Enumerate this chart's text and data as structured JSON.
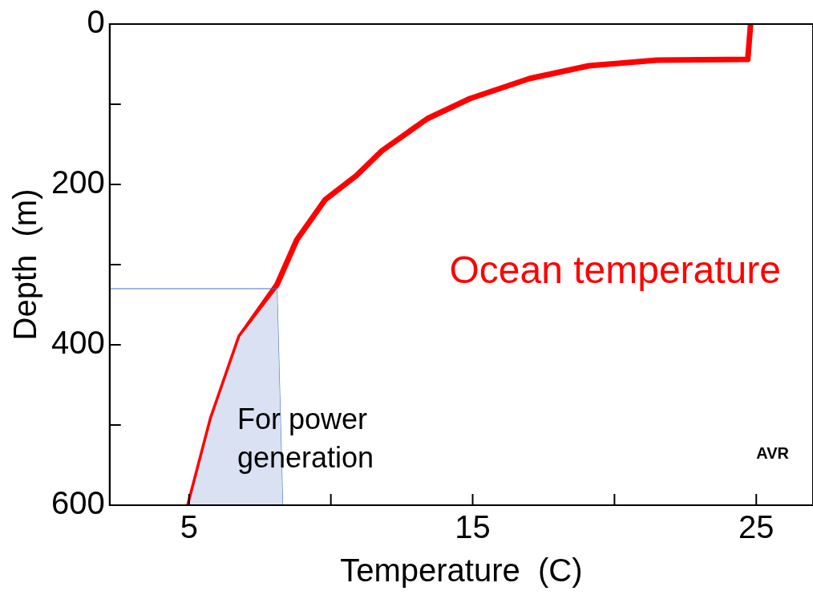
{
  "chart_data": {
    "type": "line",
    "xlabel": "Temperature  (C)",
    "ylabel": "Depth  (m)",
    "xlim": [
      2.2,
      27
    ],
    "ylim": [
      600,
      0
    ],
    "xticks": [
      5,
      {
        "value": 10,
        "label": null
      },
      15,
      {
        "value": 20,
        "label": null
      },
      25
    ],
    "yticks": [
      0,
      {
        "value": 100,
        "label": null
      },
      200,
      {
        "value": 300,
        "label": null
      },
      400,
      {
        "value": 500,
        "label": null
      },
      600
    ],
    "grid": false,
    "legend": false,
    "marker": "none",
    "series": [
      {
        "type": "area",
        "color": "#d9e1f2",
        "x": [
          8.1,
          8.3,
          5,
          5.8,
          6.8,
          8.1
        ],
        "values": [
          330,
          600,
          600,
          492,
          390,
          330
        ]
      },
      {
        "type": "line",
        "color": "#4472c4",
        "x": [
          2.2,
          8.1,
          8.3
        ],
        "values": [
          330,
          330,
          600
        ]
      },
      {
        "name": "Ocean temperature",
        "color": "#ff0000",
        "x": [
          5,
          5.8,
          6.8,
          8.1,
          8.8,
          9.8,
          10.9,
          11.8,
          13.4,
          14.9,
          17,
          19.1,
          21.5,
          24.7,
          24.8
        ],
        "values": [
          600,
          492,
          390,
          325,
          269,
          219,
          189,
          158,
          118,
          93,
          68,
          52,
          45,
          44,
          0
        ]
      }
    ],
    "annotations": [
      "For power generation",
      "AVR"
    ]
  }
}
